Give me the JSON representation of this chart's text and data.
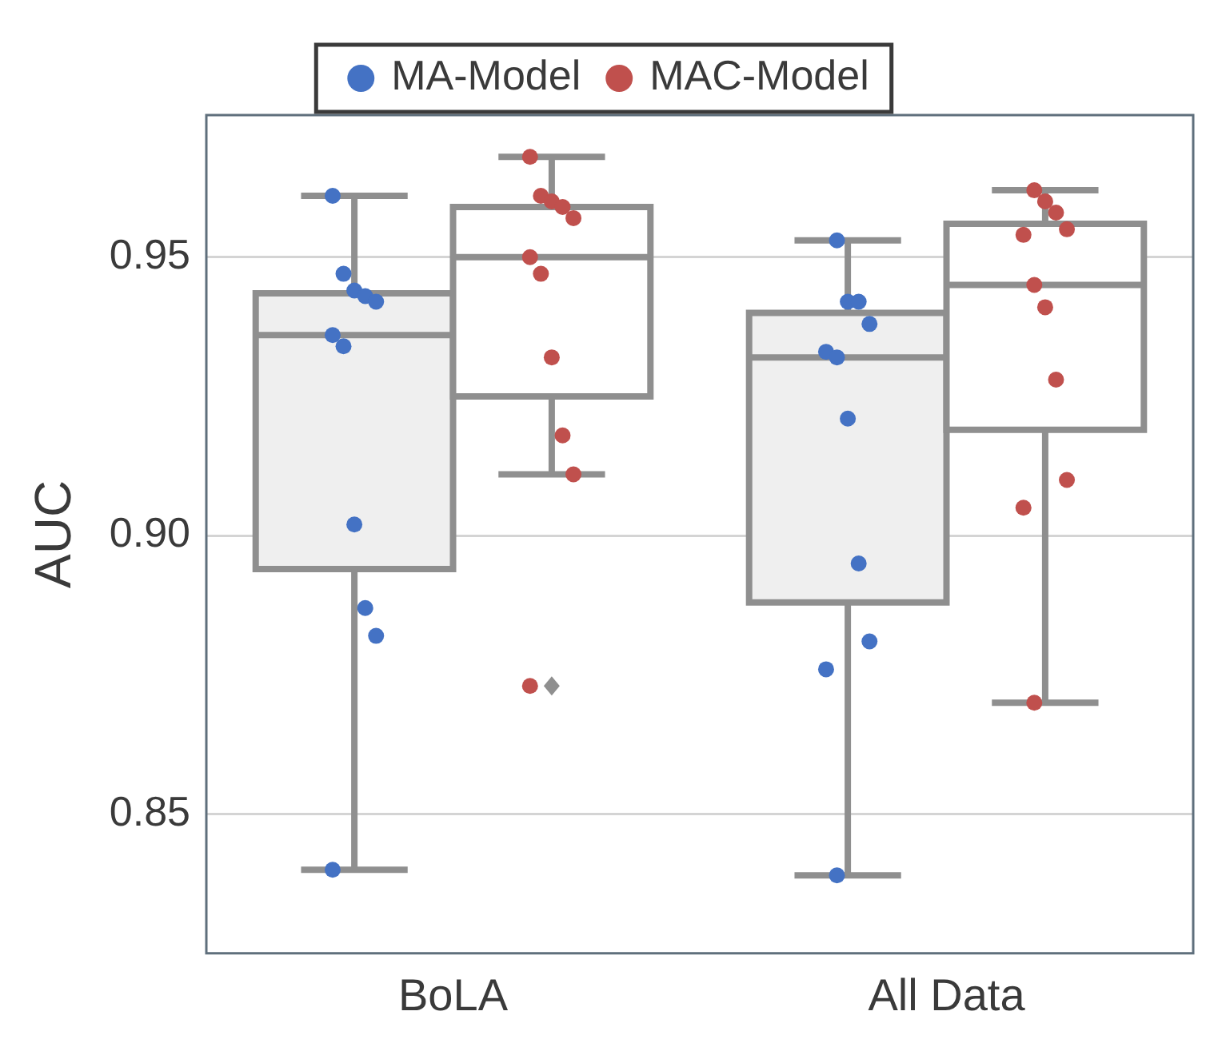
{
  "chart_data": {
    "type": "box",
    "ylabel": "AUC",
    "categories": [
      "BoLA",
      "All Data"
    ],
    "ylim": [
      0.825,
      0.9755
    ],
    "yticks": [
      {
        "value": 0.85,
        "label": "0.85"
      },
      {
        "value": 0.9,
        "label": "0.90"
      },
      {
        "value": 0.95,
        "label": "0.95"
      }
    ],
    "grid": "y",
    "legend": "top",
    "marker": "circle",
    "series": [
      {
        "type": "box",
        "color": "#efefef",
        "boxes": [
          {
            "low": 0.84,
            "q1": 0.894,
            "median": 0.936,
            "q3": 0.9435,
            "high": 0.961
          },
          {
            "low": 0.839,
            "q1": 0.888,
            "median": 0.932,
            "q3": 0.94,
            "high": 0.953
          }
        ]
      },
      {
        "type": "box",
        "color": "#ffffff",
        "boxes": [
          {
            "low": 0.911,
            "q1": 0.925,
            "median": 0.95,
            "q3": 0.959,
            "high": 0.968,
            "outliers": [
              0.873
            ]
          },
          {
            "low": 0.87,
            "q1": 0.919,
            "median": 0.945,
            "q3": 0.956,
            "high": 0.962
          }
        ]
      },
      {
        "type": "scatter",
        "name": "MA-Model",
        "color": "#4472c4",
        "x": [
          "BoLA",
          "BoLA",
          "BoLA",
          "BoLA",
          "BoLA",
          "BoLA",
          "BoLA",
          "BoLA",
          "BoLA",
          "BoLA",
          "BoLA",
          "All Data",
          "All Data",
          "All Data",
          "All Data",
          "All Data",
          "All Data",
          "All Data",
          "All Data",
          "All Data",
          "All Data",
          "All Data"
        ],
        "values": [
          0.961,
          0.947,
          0.944,
          0.943,
          0.942,
          0.936,
          0.934,
          0.902,
          0.887,
          0.882,
          0.84,
          0.953,
          0.942,
          0.942,
          0.938,
          0.933,
          0.932,
          0.921,
          0.895,
          0.881,
          0.876,
          0.839
        ]
      },
      {
        "type": "scatter",
        "name": "MAC-Model",
        "color": "#c0504d",
        "x": [
          "BoLA",
          "BoLA",
          "BoLA",
          "BoLA",
          "BoLA",
          "BoLA",
          "BoLA",
          "BoLA",
          "BoLA",
          "BoLA",
          "BoLA",
          "All Data",
          "All Data",
          "All Data",
          "All Data",
          "All Data",
          "All Data",
          "All Data",
          "All Data",
          "All Data",
          "All Data",
          "All Data"
        ],
        "values": [
          0.968,
          0.961,
          0.96,
          0.959,
          0.957,
          0.95,
          0.947,
          0.932,
          0.918,
          0.911,
          0.873,
          0.962,
          0.96,
          0.958,
          0.955,
          0.954,
          0.945,
          0.941,
          0.928,
          0.91,
          0.905,
          0.87
        ]
      }
    ]
  }
}
